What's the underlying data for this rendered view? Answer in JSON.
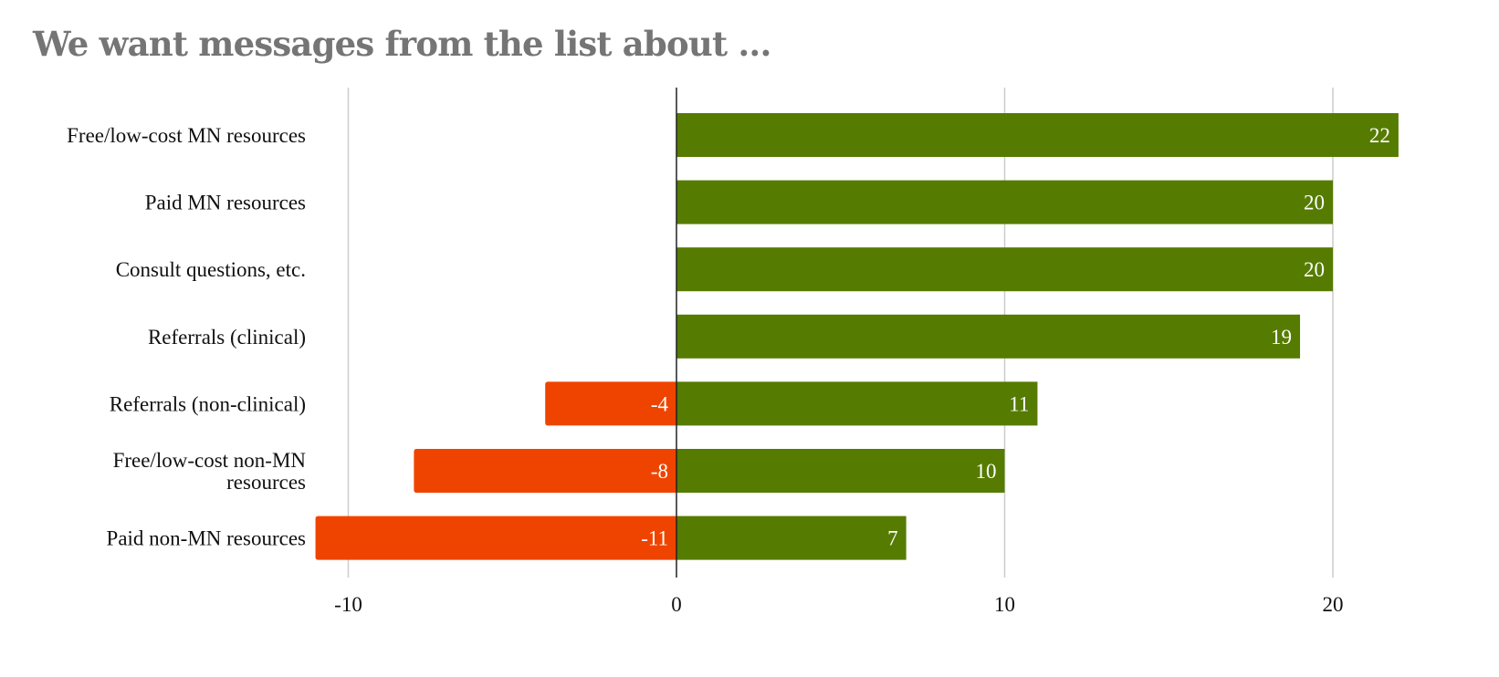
{
  "chart_data": {
    "type": "bar",
    "orientation": "horizontal",
    "stacked": true,
    "title": "We want messages from the list about ...",
    "categories": [
      "Free/low-cost MN resources",
      "Paid MN resources",
      "Consult questions, etc.",
      "Referrals (clinical)",
      "Referrals (non-clinical)",
      "Free/low-cost non-MN resources",
      "Paid non-MN resources"
    ],
    "series": [
      {
        "color": "#ef4400",
        "values": [
          0,
          0,
          0,
          0,
          -4,
          -8,
          -11
        ]
      },
      {
        "color": "#557b00",
        "values": [
          22,
          20,
          20,
          19,
          11,
          10,
          7
        ]
      }
    ],
    "xlim": [
      -10,
      22
    ],
    "xticks": [
      -10,
      0,
      10,
      20
    ],
    "grid": true,
    "legend": "none"
  }
}
